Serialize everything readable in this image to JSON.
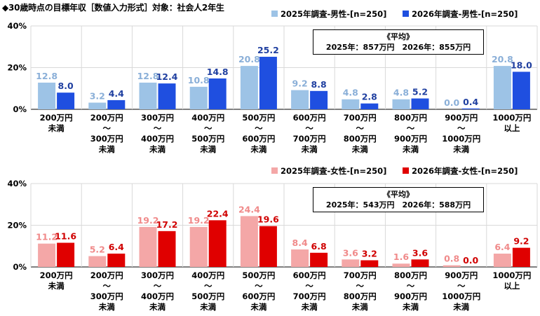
{
  "title": "◆30歳時点の目標年収［数値入力形式］対象：社会人2年生",
  "colors": {
    "male_2025": "#9DC3E6",
    "male_2026": "#1F4FE0",
    "female_2025": "#F4A7A7",
    "female_2026": "#E00000",
    "male_label_2025": "#8AAFD8",
    "male_label_2026": "#1F3FA0",
    "female_label_2025": "#F08A8A",
    "female_label_2026": "#D00000"
  },
  "chart_data": [
    {
      "type": "bar",
      "panel": "male",
      "categories": [
        [
          "200万円",
          "未満"
        ],
        [
          "200万円",
          "～",
          "300万円",
          "未満"
        ],
        [
          "300万円",
          "～",
          "400万円",
          "未満"
        ],
        [
          "400万円",
          "～",
          "500万円",
          "未満"
        ],
        [
          "500万円",
          "～",
          "600万円",
          "未満"
        ],
        [
          "600万円",
          "～",
          "700万円",
          "未満"
        ],
        [
          "700万円",
          "～",
          "800万円",
          "未満"
        ],
        [
          "800万円",
          "～",
          "900万円",
          "未満"
        ],
        [
          "900万円",
          "～",
          "1000万円",
          "未満"
        ],
        [
          "1000万円",
          "以上"
        ]
      ],
      "series": [
        {
          "name": "2025年調査-男性-[n=250]",
          "values": [
            12.8,
            3.2,
            12.8,
            10.8,
            20.8,
            9.2,
            4.8,
            4.8,
            0.0,
            20.8
          ]
        },
        {
          "name": "2026年調査-男性-[n=250]",
          "values": [
            8.0,
            4.4,
            12.4,
            14.8,
            25.2,
            8.8,
            2.8,
            5.2,
            0.4,
            18.0
          ]
        }
      ],
      "yticks": [
        "0%",
        "20%",
        "40%"
      ],
      "ylim": [
        0,
        40
      ],
      "legend": "top-right",
      "average": {
        "heading": "《平均》",
        "text": "2025年：857万円　2026年：855万円"
      }
    },
    {
      "type": "bar",
      "panel": "female",
      "categories": [
        [
          "200万円",
          "未満"
        ],
        [
          "200万円",
          "～",
          "300万円",
          "未満"
        ],
        [
          "300万円",
          "～",
          "400万円",
          "未満"
        ],
        [
          "400万円",
          "～",
          "500万円",
          "未満"
        ],
        [
          "500万円",
          "～",
          "600万円",
          "未満"
        ],
        [
          "600万円",
          "～",
          "700万円",
          "未満"
        ],
        [
          "700万円",
          "～",
          "800万円",
          "未満"
        ],
        [
          "800万円",
          "～",
          "900万円",
          "未満"
        ],
        [
          "900万円",
          "～",
          "1000万円",
          "未満"
        ],
        [
          "1000万円",
          "以上"
        ]
      ],
      "series": [
        {
          "name": "2025年調査-女性-[n=250]",
          "values": [
            11.2,
            5.2,
            19.2,
            19.2,
            24.4,
            8.4,
            3.6,
            1.6,
            0.8,
            6.4
          ]
        },
        {
          "name": "2026年調査-女性-[n=250]",
          "values": [
            11.6,
            6.4,
            17.2,
            22.4,
            19.6,
            6.8,
            3.2,
            3.6,
            0.0,
            9.2
          ]
        }
      ],
      "yticks": [
        "0%",
        "20%",
        "40%"
      ],
      "ylim": [
        0,
        40
      ],
      "legend": "top-right",
      "average": {
        "heading": "《平均》",
        "text": "2025年：543万円　2026年：588万円"
      }
    }
  ]
}
